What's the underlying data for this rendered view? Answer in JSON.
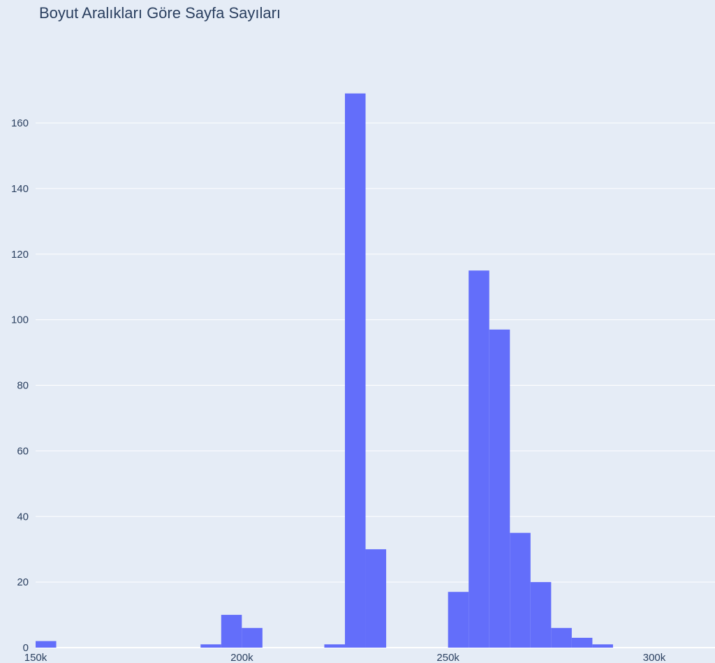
{
  "chart_data": {
    "type": "bar",
    "title": "Boyut Aralıkları Göre Sayfa Sayıları",
    "xlabel": "",
    "ylabel": "",
    "xlim": [
      150000,
      315000
    ],
    "ylim": [
      0,
      172
    ],
    "bin_width": 5000,
    "x_ticks": [
      150000,
      200000,
      250000,
      300000
    ],
    "x_tick_labels": [
      "150k",
      "200k",
      "250k",
      "300k"
    ],
    "y_ticks": [
      0,
      20,
      40,
      60,
      80,
      100,
      120,
      140,
      160
    ],
    "y_tick_labels": [
      "0",
      "20",
      "40",
      "60",
      "80",
      "100",
      "120",
      "140",
      "160"
    ],
    "grid": true,
    "bar_color": "#636efa",
    "bins": [
      {
        "start": 150000,
        "end": 155000,
        "count": 2
      },
      {
        "start": 190000,
        "end": 195000,
        "count": 1
      },
      {
        "start": 195000,
        "end": 200000,
        "count": 10
      },
      {
        "start": 200000,
        "end": 205000,
        "count": 6
      },
      {
        "start": 220000,
        "end": 225000,
        "count": 1
      },
      {
        "start": 225000,
        "end": 230000,
        "count": 169
      },
      {
        "start": 230000,
        "end": 235000,
        "count": 30
      },
      {
        "start": 250000,
        "end": 255000,
        "count": 17
      },
      {
        "start": 255000,
        "end": 260000,
        "count": 115
      },
      {
        "start": 260000,
        "end": 265000,
        "count": 97
      },
      {
        "start": 265000,
        "end": 270000,
        "count": 35
      },
      {
        "start": 270000,
        "end": 275000,
        "count": 20
      },
      {
        "start": 275000,
        "end": 280000,
        "count": 6
      },
      {
        "start": 280000,
        "end": 285000,
        "count": 3
      },
      {
        "start": 285000,
        "end": 290000,
        "count": 1
      }
    ]
  }
}
